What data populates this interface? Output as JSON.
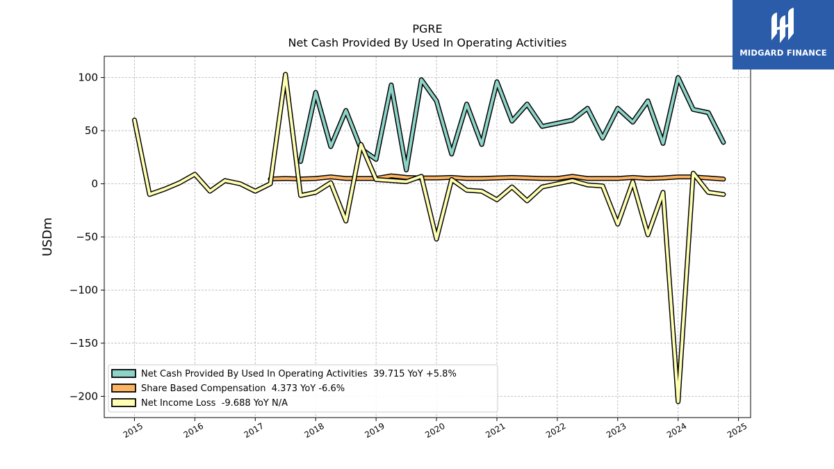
{
  "brand": {
    "name": "MIDGARD FINANCE"
  },
  "chart_data": {
    "type": "line",
    "title": "PGRE",
    "subtitle": "Net Cash Provided By Used In Operating Activities",
    "ylabel": "USDm",
    "xlabel": "",
    "ylim": [
      -220,
      120
    ],
    "xlim": [
      2014.5,
      2025.2
    ],
    "yticks": [
      100,
      50,
      0,
      -50,
      -100,
      -150,
      -200
    ],
    "ytick_labels": [
      "100",
      "50",
      "0",
      "−50",
      "−100",
      "−150",
      "−200"
    ],
    "xticks": [
      2015,
      2016,
      2017,
      2018,
      2019,
      2020,
      2021,
      2022,
      2023,
      2024,
      2025
    ],
    "xtick_labels": [
      "2015",
      "2016",
      "2017",
      "2018",
      "2019",
      "2020",
      "2021",
      "2022",
      "2023",
      "2024",
      "2025"
    ],
    "grid": true,
    "legend_position": "bottom-left",
    "series": [
      {
        "name": "Net Cash Provided By Used In Operating Activities  39.715 YoY +5.8%",
        "color": "#8dd3c7",
        "x": [
          2017.75,
          2018.0,
          2018.25,
          2018.5,
          2018.75,
          2019.0,
          2019.25,
          2019.5,
          2019.75,
          2020.0,
          2020.25,
          2020.5,
          2020.75,
          2021.0,
          2021.25,
          2021.5,
          2021.75,
          2022.0,
          2022.25,
          2022.5,
          2022.75,
          2023.0,
          2023.25,
          2023.5,
          2023.75,
          2024.0,
          2024.25,
          2024.5,
          2024.75
        ],
        "values": [
          21,
          86,
          35,
          69,
          33,
          23,
          93,
          13,
          98,
          78,
          28,
          75,
          37,
          96,
          59,
          75,
          54,
          57,
          60,
          71,
          43,
          71,
          58,
          78,
          38,
          100,
          70,
          67,
          39
        ]
      },
      {
        "name": "Share Based Compensation  4.373 YoY -6.6%",
        "color": "#fdb462",
        "x": [
          2017.25,
          2017.5,
          2017.75,
          2018.0,
          2018.25,
          2018.5,
          2018.75,
          2019.0,
          2019.25,
          2019.5,
          2019.75,
          2020.0,
          2020.25,
          2020.5,
          2020.75,
          2021.0,
          2021.25,
          2021.5,
          2021.75,
          2022.0,
          2022.25,
          2022.5,
          2022.75,
          2023.0,
          2023.25,
          2023.5,
          2023.75,
          2024.0,
          2024.25,
          2024.5,
          2024.75
        ],
        "values": [
          4.5,
          5,
          4.5,
          5,
          6.5,
          5,
          5,
          5,
          7.5,
          6,
          5.5,
          5.5,
          6,
          5,
          5,
          5.5,
          6,
          5.5,
          5,
          5,
          7,
          5,
          5,
          5,
          6,
          5,
          5.5,
          6.5,
          6.5,
          5.5,
          4.4
        ]
      },
      {
        "name": "Net Income Loss  -9.688 YoY N/A",
        "color": "#ffffb3",
        "x": [
          2015.0,
          2015.25,
          2015.5,
          2015.75,
          2016.0,
          2016.25,
          2016.5,
          2016.75,
          2017.0,
          2017.25,
          2017.5,
          2017.75,
          2018.0,
          2018.25,
          2018.5,
          2018.75,
          2019.0,
          2019.25,
          2019.5,
          2019.75,
          2020.0,
          2020.25,
          2020.5,
          2020.75,
          2021.0,
          2021.25,
          2021.5,
          2021.75,
          2022.0,
          2022.25,
          2022.5,
          2022.75,
          2023.0,
          2023.25,
          2023.5,
          2023.75,
          2024.0,
          2024.25,
          2024.5,
          2024.75
        ],
        "values": [
          60,
          -10,
          -5,
          1,
          9,
          -7,
          3,
          0,
          -7,
          0,
          103,
          -11,
          -8,
          1,
          -35,
          37,
          4,
          3,
          2,
          7,
          -52,
          4,
          -6,
          -7,
          -15,
          -3,
          -16,
          -3,
          0,
          3,
          -1,
          -2,
          -38,
          2,
          -48,
          -8,
          -205,
          10,
          -8,
          -10
        ]
      }
    ]
  }
}
